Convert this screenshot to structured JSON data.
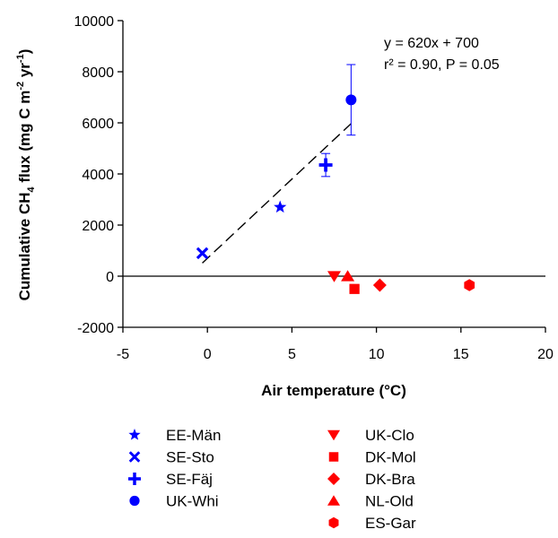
{
  "chart_data": {
    "type": "scatter",
    "xlabel": "Air temperature (°C)",
    "ylabel": {
      "prefix": "Cumulative CH",
      "sub": "4",
      "mid": " flux (mg C m",
      "sup1": "-2",
      "mid2": " yr",
      "sup2": "-1",
      "end": ")"
    },
    "xlim": [
      -5,
      20
    ],
    "ylim": [
      -2000,
      10000
    ],
    "xticks": [
      -5,
      0,
      5,
      10,
      15,
      20
    ],
    "yticks": [
      -2000,
      0,
      2000,
      4000,
      6000,
      8000,
      10000
    ],
    "xtick_labels": [
      "-5",
      "0",
      "5",
      "10",
      "15",
      "20"
    ],
    "ytick_labels": [
      "-2000",
      "0",
      "2000",
      "4000",
      "6000",
      "8000",
      "10000"
    ],
    "zero_line": true,
    "grid": false,
    "annotation": [
      "y = 620x + 700",
      "r² = 0.90, P = 0.05"
    ],
    "fit_line": {
      "slope": 620,
      "intercept": 700,
      "x_range": [
        -0.3,
        8.5
      ],
      "style": "dashed"
    },
    "series": [
      {
        "name": "EE-Män",
        "marker": "star",
        "color": "#0000ff",
        "x": 4.3,
        "y": 2700,
        "err": 0
      },
      {
        "name": "SE-Sto",
        "marker": "x",
        "color": "#0000ff",
        "x": -0.3,
        "y": 900,
        "err": 0
      },
      {
        "name": "SE-Fäj",
        "marker": "plus",
        "color": "#0000ff",
        "x": 7.0,
        "y": 4350,
        "err": 450
      },
      {
        "name": "UK-Whi",
        "marker": "circle",
        "color": "#0000ff",
        "x": 8.5,
        "y": 6900,
        "err": 1380
      },
      {
        "name": "UK-Clo",
        "marker": "triangle-down",
        "color": "#ff0000",
        "x": 7.5,
        "y": 0,
        "err": 0
      },
      {
        "name": "DK-Mol",
        "marker": "square",
        "color": "#ff0000",
        "x": 8.7,
        "y": -500,
        "err": 0
      },
      {
        "name": "DK-Bra",
        "marker": "diamond",
        "color": "#ff0000",
        "x": 10.2,
        "y": -350,
        "err": 0
      },
      {
        "name": "NL-Old",
        "marker": "triangle-up",
        "color": "#ff0000",
        "x": 8.3,
        "y": 0,
        "err": 0
      },
      {
        "name": "ES-Gar",
        "marker": "hexagon",
        "color": "#ff0000",
        "x": 15.5,
        "y": -350,
        "err": 0
      }
    ],
    "legend": {
      "placement": "bottom",
      "columns": [
        [
          "EE-Män",
          "SE-Sto",
          "SE-Fäj",
          "UK-Whi"
        ],
        [
          "UK-Clo",
          "DK-Mol",
          "DK-Bra",
          "NL-Old",
          "ES-Gar"
        ]
      ]
    }
  }
}
